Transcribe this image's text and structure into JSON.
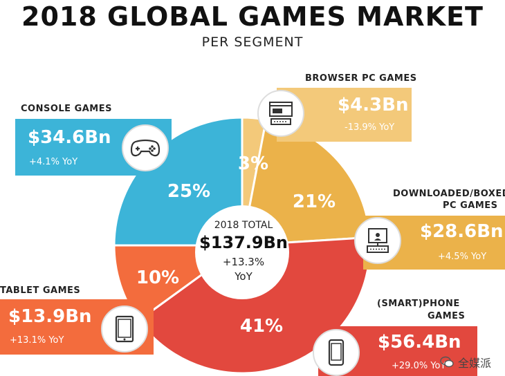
{
  "title": "2018 GLOBAL GAMES MARKET",
  "subtitle": "PER SEGMENT",
  "center": {
    "label": "2018 TOTAL",
    "value": "$137.9Bn",
    "yoy": "+13.3%",
    "yoy_unit": "YoY"
  },
  "colors": {
    "console": "#3cb4d8",
    "browser": "#f3c97a",
    "downloaded": "#ebb24a",
    "phone": "#e2483e",
    "tablet": "#f36c3d"
  },
  "segments": {
    "console": {
      "label": "CONSOLE GAMES",
      "value": "$34.6Bn",
      "yoy": "+4.1% YoY",
      "pct": "25%",
      "icon": "gamepad-icon"
    },
    "browser": {
      "label": "BROWSER PC GAMES",
      "value": "$4.3Bn",
      "yoy": "-13.9% YoY",
      "pct": "3%",
      "icon": "browser-pc-icon"
    },
    "downloaded": {
      "label_line1": "DOWNLOADED/BOXED",
      "label_line2": "PC GAMES",
      "value": "$28.6Bn",
      "yoy": "+4.5% YoY",
      "pct": "21%",
      "icon": "desktop-pc-icon"
    },
    "phone": {
      "label_line1": "(SMART)PHONE",
      "label_line2": "GAMES",
      "value": "$56.4Bn",
      "yoy": "+29.0% YoY",
      "pct": "41%",
      "icon": "smartphone-icon"
    },
    "tablet": {
      "label": "TABLET GAMES",
      "value": "$13.9Bn",
      "yoy": "+13.1% YoY",
      "pct": "10%",
      "icon": "tablet-icon"
    }
  },
  "watermark": "全媒派",
  "chart_data": {
    "type": "pie",
    "title": "2018 GLOBAL GAMES MARKET",
    "subtitle": "PER SEGMENT",
    "categories": [
      "CONSOLE GAMES",
      "BROWSER PC GAMES",
      "DOWNLOADED/BOXED PC GAMES",
      "(SMART)PHONE GAMES",
      "TABLET GAMES"
    ],
    "values": [
      34.6,
      4.3,
      28.6,
      56.4,
      13.9
    ],
    "percentages": [
      25,
      3,
      21,
      41,
      10
    ],
    "yoy": [
      "+4.1%",
      "-13.9%",
      "+4.5%",
      "+29.0%",
      "+13.1%"
    ],
    "unit": "Bn",
    "total": 137.9
  }
}
